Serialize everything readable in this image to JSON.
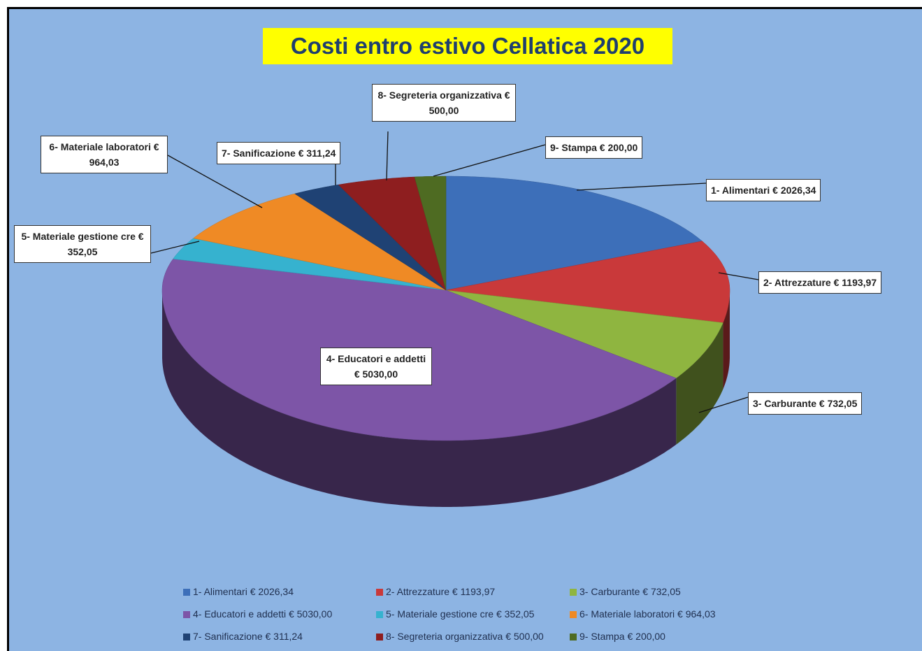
{
  "chart_data": {
    "type": "pie3d",
    "title": "Costi entro estivo Cellatica 2020",
    "categories": [
      "1- Alimentari € 2026,34",
      "2- Attrezzature € 1193,97",
      "3- Carburante € 732,05",
      "4- Educatori e addetti € 5030,00",
      "5- Materiale gestione cre € 352,05",
      "6- Materiale laboratori € 964,03",
      "7- Sanificazione € 311,24",
      "8- Segreteria organizzativa € 500,00",
      "9- Stampa € 200,00"
    ],
    "values": [
      2026.34,
      1193.97,
      732.05,
      5030.0,
      352.05,
      964.03,
      311.24,
      500.0,
      200.0
    ],
    "colors": [
      "#3d6fb9",
      "#c9393a",
      "#8fb540",
      "#7d55a7",
      "#36b2cf",
      "#ef8a25",
      "#1f4274",
      "#8e1e1f",
      "#4e6b22"
    ],
    "legend": "bottom"
  }
}
